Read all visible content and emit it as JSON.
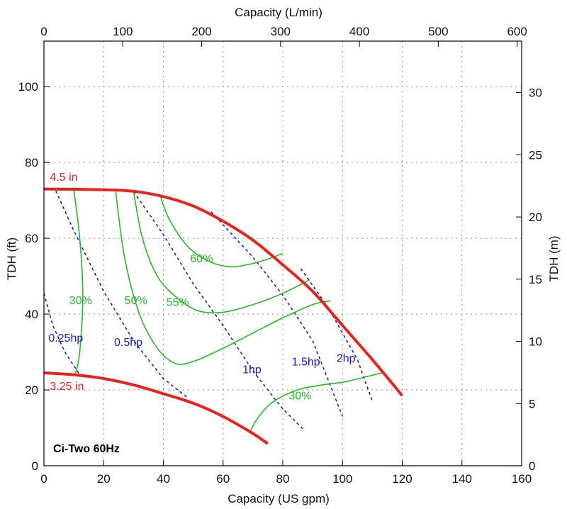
{
  "chart_data": {
    "type": "line",
    "title": "Ci-Two 60Hz",
    "xlabel": "Capacity (US gpm)",
    "ylabel": "TDH (ft)",
    "x2label": "Capacity (L/min)",
    "y2label": "TDH (m)",
    "xlim": [
      0,
      160
    ],
    "ylim": [
      0,
      112
    ],
    "x2lim": [
      0,
      605.7
    ],
    "y2lim": [
      0,
      34.14
    ],
    "xticks": [
      0,
      20,
      40,
      60,
      80,
      100,
      120,
      140,
      160
    ],
    "yticks": [
      0,
      20,
      40,
      60,
      80,
      100
    ],
    "x2ticks": [
      0,
      100,
      200,
      300,
      400,
      500,
      600
    ],
    "y2ticks": [
      0,
      5,
      10,
      15,
      20,
      25,
      30
    ],
    "grid": true,
    "colors": {
      "impeller": "#e8231b",
      "efficiency": "#22bb22",
      "power": "#1a1ad6"
    },
    "impeller_curves": [
      {
        "label": "4.5 in",
        "points": [
          [
            0,
            73
          ],
          [
            20,
            72.8
          ],
          [
            30,
            72.4
          ],
          [
            40,
            71
          ],
          [
            50,
            68.5
          ],
          [
            60,
            64.5
          ],
          [
            70,
            59.5
          ],
          [
            80,
            53
          ],
          [
            90,
            46
          ],
          [
            100,
            37
          ],
          [
            110,
            28
          ],
          [
            120,
            18.5
          ]
        ]
      },
      {
        "label": "3.25 in",
        "points": [
          [
            0,
            24.5
          ],
          [
            10,
            24
          ],
          [
            20,
            23
          ],
          [
            30,
            21.3
          ],
          [
            40,
            19
          ],
          [
            50,
            16.5
          ],
          [
            60,
            13
          ],
          [
            70,
            8.5
          ],
          [
            75,
            5.8
          ]
        ]
      }
    ],
    "efficiency_curves": [
      {
        "label": "30%",
        "points": [
          [
            10,
            72.8
          ],
          [
            12,
            60
          ],
          [
            13,
            45
          ],
          [
            12,
            30
          ],
          [
            10.5,
            24
          ]
        ]
      },
      {
        "label": "50%",
        "points": [
          [
            24,
            72.6
          ],
          [
            27,
            55
          ],
          [
            32,
            40
          ],
          [
            38,
            31
          ],
          [
            44,
            27
          ],
          [
            50,
            27.5
          ],
          [
            60,
            31
          ],
          [
            70,
            35
          ],
          [
            80,
            39
          ],
          [
            90,
            42.5
          ],
          [
            96,
            43.5
          ]
        ]
      },
      {
        "label": "55%",
        "points": [
          [
            30,
            72.4
          ],
          [
            33,
            60
          ],
          [
            38,
            50
          ],
          [
            45,
            44
          ],
          [
            52,
            40.8
          ],
          [
            60,
            40.5
          ],
          [
            70,
            42.5
          ],
          [
            80,
            45.5
          ],
          [
            89,
            49
          ]
        ]
      },
      {
        "label": "60%",
        "points": [
          [
            39,
            71
          ],
          [
            42,
            65
          ],
          [
            48,
            58
          ],
          [
            55,
            54
          ],
          [
            62,
            52.5
          ],
          [
            68,
            53
          ],
          [
            75,
            54.5
          ],
          [
            80,
            56
          ]
        ]
      },
      {
        "label": "30%",
        "points": [
          [
            69,
            9
          ],
          [
            72,
            13
          ],
          [
            77,
            17
          ],
          [
            85,
            20
          ],
          [
            93,
            21.3
          ],
          [
            100,
            22
          ],
          [
            108,
            23.5
          ],
          [
            114,
            24.6
          ]
        ]
      }
    ],
    "power_curves": [
      {
        "label": "0.25hp",
        "points": [
          [
            0,
            45.5
          ],
          [
            3,
            37
          ],
          [
            7,
            30
          ],
          [
            12,
            24
          ]
        ]
      },
      {
        "label": "0.5hp",
        "points": [
          [
            4,
            72.5
          ],
          [
            10,
            62
          ],
          [
            20,
            46
          ],
          [
            30,
            33
          ],
          [
            40,
            23
          ],
          [
            48,
            18
          ]
        ]
      },
      {
        "label": "1hp",
        "points": [
          [
            30,
            72.3
          ],
          [
            40,
            61
          ],
          [
            50,
            48
          ],
          [
            60,
            37
          ],
          [
            70,
            25
          ],
          [
            80,
            15
          ],
          [
            87,
            9.5
          ]
        ]
      },
      {
        "label": "1.5hp",
        "points": [
          [
            56,
            67
          ],
          [
            70,
            55
          ],
          [
            80,
            45
          ],
          [
            90,
            33
          ],
          [
            100,
            13
          ]
        ]
      },
      {
        "label": "2hp",
        "points": [
          [
            86,
            52
          ],
          [
            95,
            42
          ],
          [
            105,
            28
          ],
          [
            110,
            17
          ]
        ]
      }
    ],
    "curve_labels": [
      {
        "text": "4.5 in",
        "x": 2,
        "y": 75.2,
        "color": "impeller"
      },
      {
        "text": "3.25 in",
        "x": 2,
        "y": 20,
        "color": "impeller"
      },
      {
        "text": "30%",
        "x": 8.5,
        "y": 42.6,
        "color": "efficiency"
      },
      {
        "text": "50%",
        "x": 27,
        "y": 42.6,
        "color": "efficiency"
      },
      {
        "text": "55%",
        "x": 41,
        "y": 42.2,
        "color": "efficiency"
      },
      {
        "text": "60%",
        "x": 49,
        "y": 53.7,
        "color": "efficiency"
      },
      {
        "text": "30%",
        "x": 82,
        "y": 17.5,
        "color": "efficiency"
      },
      {
        "text": "0.25hp",
        "x": 1.5,
        "y": 32.7,
        "color": "power"
      },
      {
        "text": "0.5hp",
        "x": 23.5,
        "y": 31.6,
        "color": "power"
      },
      {
        "text": "1hp",
        "x": 66.5,
        "y": 24.4,
        "color": "power"
      },
      {
        "text": "1.5hp",
        "x": 83,
        "y": 26.5,
        "color": "power"
      },
      {
        "text": "2hp",
        "x": 98,
        "y": 27.4,
        "color": "power"
      }
    ]
  }
}
